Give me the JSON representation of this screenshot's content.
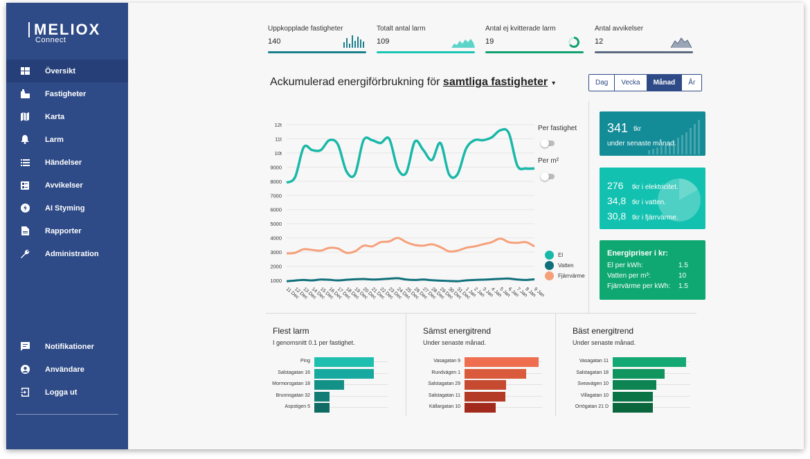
{
  "brand": {
    "name": "MELIOX",
    "sub": "Connect"
  },
  "nav": {
    "items": [
      {
        "label": "Översikt",
        "icon": "dashboard-icon",
        "active": true
      },
      {
        "label": "Fastigheter",
        "icon": "building-icon"
      },
      {
        "label": "Karta",
        "icon": "map-icon"
      },
      {
        "label": "Larm",
        "icon": "bell-icon"
      },
      {
        "label": "Händelser",
        "icon": "list-icon"
      },
      {
        "label": "Avvikelser",
        "icon": "deviation-icon"
      },
      {
        "label": "AI Styming",
        "icon": "bolt-icon"
      },
      {
        "label": "Rapporter",
        "icon": "report-icon"
      },
      {
        "label": "Administration",
        "icon": "wrench-icon"
      }
    ],
    "bottom": [
      {
        "label": "Notifikationer",
        "icon": "message-icon"
      },
      {
        "label": "Användare",
        "icon": "user-icon"
      },
      {
        "label": "Logga ut",
        "icon": "logout-icon"
      }
    ]
  },
  "kpis": [
    {
      "label": "Uppkopplade fastigheter",
      "value": "140",
      "color": "#1a7f8c"
    },
    {
      "label": "Totalt antal larm",
      "value": "109",
      "color": "#19c4b3"
    },
    {
      "label": "Antal ej kvitterade larm",
      "value": "19",
      "color": "#10a06e"
    },
    {
      "label": "Antal avvikelser",
      "value": "12",
      "color": "#5a6a80"
    }
  ],
  "header": {
    "title_prefix": "Ackumulerad energiförbrukning för",
    "title_selection": "samtliga fastigheter",
    "caret": "▾",
    "periods": [
      "Dag",
      "Vecka",
      "Månad",
      "År"
    ],
    "active_period": "Månad"
  },
  "toggles": {
    "per_property": "Per fastighet",
    "per_m2": "Per m²"
  },
  "chart_data": {
    "type": "line",
    "ylim": [
      0,
      12000
    ],
    "y_ticks": [
      {
        "v": 1000,
        "label": "1000"
      },
      {
        "v": 2000,
        "label": "2000"
      },
      {
        "v": 3000,
        "label": "3000"
      },
      {
        "v": 4000,
        "label": "4000"
      },
      {
        "v": 5000,
        "label": "5000"
      },
      {
        "v": 6000,
        "label": "6000"
      },
      {
        "v": 7000,
        "label": "7000"
      },
      {
        "v": 8000,
        "label": "8000"
      },
      {
        "v": 9000,
        "label": "9000"
      },
      {
        "v": 10000,
        "label": "10t"
      },
      {
        "v": 11000,
        "label": "11t"
      },
      {
        "v": 12000,
        "label": "12t"
      }
    ],
    "categories": [
      "11 Dec",
      "12 Dec",
      "13 Dec",
      "14 Dec",
      "15 Dec",
      "16 Dec",
      "17 Dec",
      "18 Dec",
      "19 Dec",
      "20 Dec",
      "21 Dec",
      "22 Dec",
      "23 Dec",
      "24 Dec",
      "25 Dec",
      "26 Dec",
      "27 Dec",
      "28 Dec",
      "29 Dec",
      "30 Dec",
      "31 Dec",
      "1 Jan",
      "2 Jan",
      "3 Jan",
      "4 Jan",
      "5 Jan",
      "6 Jan",
      "7 Jan",
      "8 Jan",
      "9 Jan"
    ],
    "series": [
      {
        "name": "El",
        "color": "#19b8a8",
        "values": [
          7900,
          8300,
          10400,
          10200,
          10200,
          10900,
          10600,
          8700,
          8500,
          10900,
          10900,
          10700,
          11000,
          8900,
          8600,
          10800,
          10200,
          9500,
          10700,
          8500,
          8500,
          10300,
          10900,
          10900,
          11100,
          11600,
          11400,
          9100,
          8900,
          8900
        ]
      },
      {
        "name": "Vatten",
        "color": "#0f6f7a",
        "values": [
          940,
          990,
          1030,
          1000,
          1060,
          1040,
          1000,
          1040,
          1080,
          1100,
          1060,
          1080,
          1120,
          1150,
          1060,
          1030,
          1060,
          1010,
          980,
          960,
          940,
          1000,
          1030,
          1050,
          1080,
          1110,
          1130,
          1060,
          1030,
          1080
        ]
      },
      {
        "name": "Fjärrvärme",
        "color": "#f6a07a",
        "values": [
          2900,
          2950,
          3200,
          3150,
          3100,
          3300,
          3250,
          2950,
          3050,
          3450,
          3400,
          3700,
          3750,
          4000,
          3700,
          3500,
          3450,
          3550,
          3350,
          3050,
          3100,
          3300,
          3400,
          3550,
          3700,
          3950,
          3700,
          3650,
          3700,
          3400
        ]
      }
    ],
    "legend": "right"
  },
  "cards": {
    "total": {
      "value": "341",
      "unit": "tkr",
      "subtitle": "under senaste månad."
    },
    "split": [
      {
        "value": "276",
        "text": "tkr i elektricitet."
      },
      {
        "value": "34,8",
        "text": "tkr i vatten."
      },
      {
        "value": "30,8",
        "text": "tkr i fjärrvärme."
      }
    ],
    "prices": {
      "title": "Energipriser i kr:",
      "rows": [
        {
          "label": "El per kWh:",
          "value": "1.5"
        },
        {
          "label": "Vatten per m³:",
          "value": "10"
        },
        {
          "label": "Fjärrvärme per kWh:",
          "value": "1.5"
        }
      ]
    }
  },
  "panels": [
    {
      "title": "Flest larm",
      "subtitle": "I genomsnitt 0.1 per fastighet.",
      "rows": [
        {
          "label": "Ping",
          "value": 1.0,
          "color": "#1fbfb0"
        },
        {
          "label": "Salstagatan 16",
          "value": 1.0,
          "color": "#17a89f"
        },
        {
          "label": "Mormorsgatan 18",
          "value": 0.5,
          "color": "#139186"
        },
        {
          "label": "Brunnsgatan 32",
          "value": 0.25,
          "color": "#117d74"
        },
        {
          "label": "Aspstigen 5",
          "value": 0.25,
          "color": "#0f6b63"
        }
      ]
    },
    {
      "title": "Sämst energitrend",
      "subtitle": "Under senaste månad.",
      "rows": [
        {
          "label": "Vasagatan 9",
          "value": 1.0,
          "color": "#ee6e4f"
        },
        {
          "label": "Rundvägen 1",
          "value": 0.83,
          "color": "#d95b3c"
        },
        {
          "label": "Salstagatan 29",
          "value": 0.56,
          "color": "#c54a30"
        },
        {
          "label": "Salstagatan 11",
          "value": 0.55,
          "color": "#b43a26"
        },
        {
          "label": "Källargatan 10",
          "value": 0.42,
          "color": "#a22a1c"
        }
      ]
    },
    {
      "title": "Bäst energitrend",
      "subtitle": "Under senaste månad.",
      "rows": [
        {
          "label": "Vasagatan 11",
          "value": 1.0,
          "color": "#14a874"
        },
        {
          "label": "Salstagatan 18",
          "value": 0.71,
          "color": "#11955f"
        },
        {
          "label": "Sveavägen 10",
          "value": 0.59,
          "color": "#0e8452"
        },
        {
          "label": "Villagatan 10",
          "value": 0.55,
          "color": "#0b7447"
        },
        {
          "label": "Orrögatan 21 D",
          "value": 0.55,
          "color": "#0a663c"
        }
      ]
    }
  ]
}
